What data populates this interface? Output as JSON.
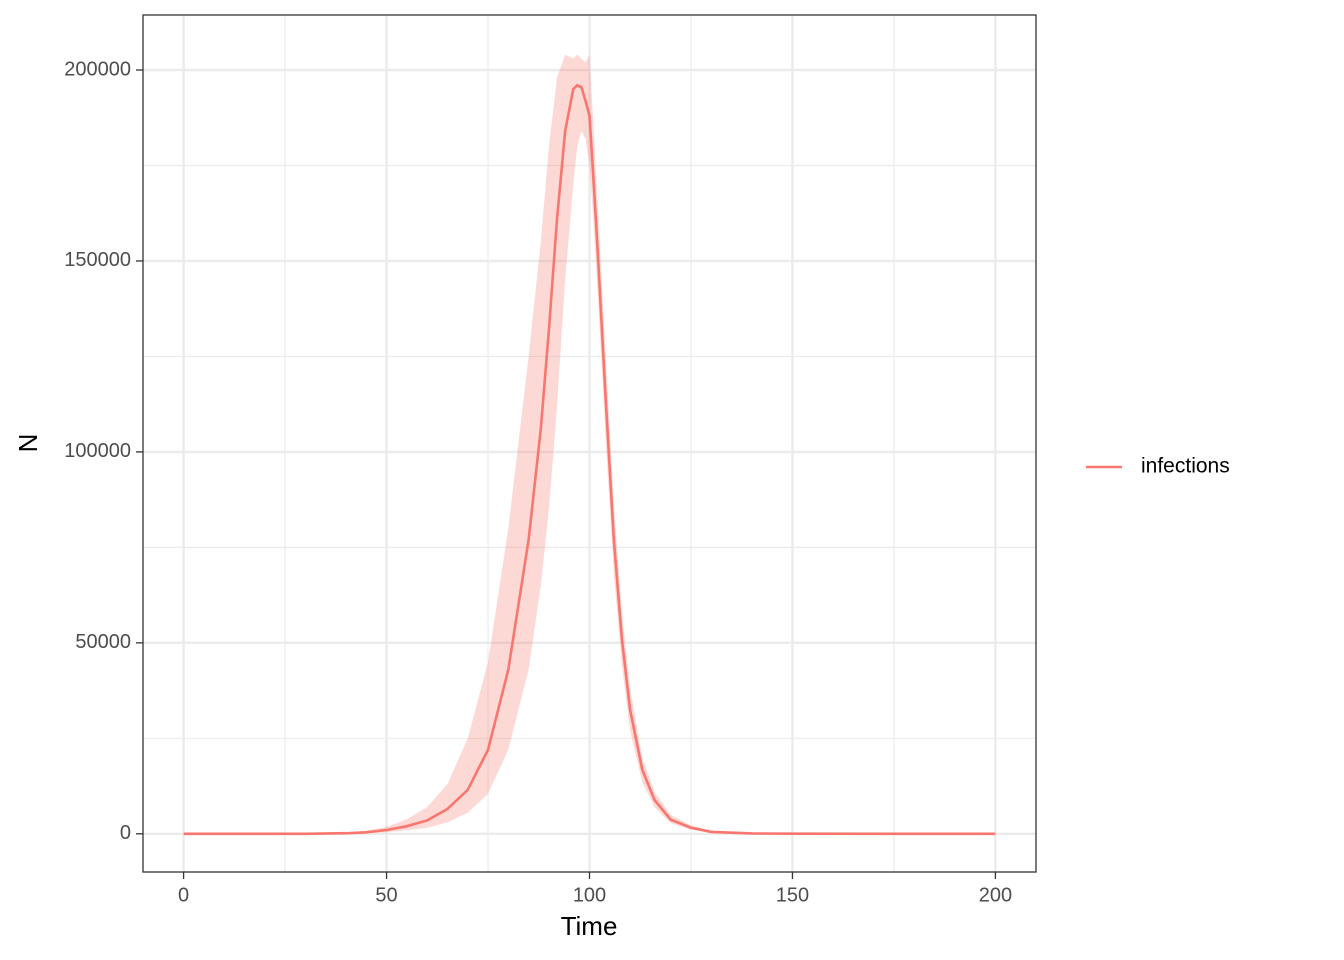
{
  "chart_data": {
    "type": "line",
    "x_label": "Time",
    "y_label": "N",
    "x": [
      0,
      20,
      30,
      40,
      45,
      50,
      55,
      60,
      65,
      70,
      75,
      80,
      85,
      88,
      90,
      92,
      94,
      96,
      97,
      98,
      99,
      100,
      101,
      102,
      104,
      106,
      108,
      110,
      113,
      116,
      120,
      125,
      130,
      140,
      150,
      175,
      200
    ],
    "series": [
      {
        "name": "infections",
        "color": "#F8766D",
        "band_opacity": 0.28,
        "values": [
          0,
          0,
          10,
          150,
          400,
          1000,
          2000,
          3500,
          6500,
          11500,
          22000,
          43000,
          77000,
          106000,
          132000,
          161000,
          184000,
          195000,
          196000,
          195500,
          192000,
          188000,
          171000,
          153000,
          113600,
          77000,
          50800,
          32500,
          16800,
          8900,
          3700,
          1600,
          500,
          100,
          20,
          0,
          0
        ],
        "upper": [
          0,
          0,
          20,
          300,
          800,
          1800,
          3800,
          7000,
          13000,
          25000,
          45000,
          80000,
          125000,
          155000,
          180000,
          198000,
          204000,
          203000,
          204000,
          203000,
          202000,
          204000,
          185000,
          165000,
          125000,
          86000,
          58000,
          38000,
          20000,
          11000,
          5000,
          2200,
          800,
          150,
          30,
          0,
          0
        ],
        "lower": [
          0,
          0,
          5,
          60,
          150,
          400,
          900,
          1600,
          3000,
          5500,
          10500,
          22000,
          43000,
          65000,
          85000,
          112000,
          145000,
          170000,
          180000,
          184000,
          182000,
          175000,
          160000,
          142000,
          103000,
          68000,
          44000,
          27000,
          13500,
          7000,
          2800,
          1100,
          300,
          60,
          10,
          0,
          0
        ]
      }
    ],
    "xlim": [
      -10,
      210
    ],
    "xticks": [
      0,
      50,
      100,
      150,
      200
    ],
    "xminor": [
      25,
      75,
      125,
      175
    ],
    "ylim": [
      -10000,
      214400
    ],
    "yticks": [
      0,
      50000,
      100000,
      150000,
      200000
    ],
    "yminor": [
      25000,
      75000,
      125000,
      175000
    ],
    "grid": true,
    "legend": "right"
  }
}
